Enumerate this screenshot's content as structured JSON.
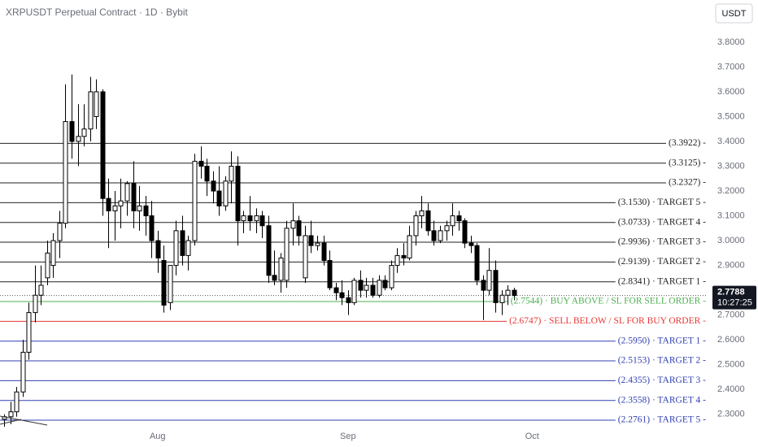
{
  "chart_data": {
    "type": "candlestick",
    "title": "XRPUSDT Perpetual Contract · 1D · Bybit",
    "currency": "USDT",
    "up_color": "#ffffff",
    "down_color": "#000000",
    "edge_color": "#000000",
    "open": [
      2.28,
      2.29,
      2.31,
      2.39,
      2.55,
      2.71,
      2.78,
      2.85,
      2.9,
      3.0,
      3.07,
      3.48,
      3.4,
      3.42,
      3.45,
      3.5,
      3.6,
      3.17,
      3.12,
      3.14,
      3.16,
      3.23,
      3.12,
      3.14,
      3.1,
      3.0,
      2.92,
      2.75,
      2.9,
      3.04,
      2.94,
      3.0,
      3.32,
      3.3,
      3.24,
      3.2,
      3.14,
      3.24,
      3.3,
      3.08,
      3.1,
      3.08,
      3.1,
      3.06,
      2.86,
      2.84,
      2.84,
      3.05,
      3.08,
      2.85,
      3.02,
      2.98,
      2.99,
      2.92,
      2.81,
      2.79,
      2.77,
      2.75,
      2.84,
      2.8,
      2.82,
      2.78,
      2.84,
      2.81,
      2.9,
      2.94,
      2.93,
      3.02,
      3.1,
      3.12,
      3.04,
      3.0,
      3.04,
      3.06,
      3.1,
      3.08,
      2.99,
      2.98,
      2.84,
      2.8,
      2.88,
      2.75,
      2.78,
      2.8
    ],
    "high": [
      2.3,
      2.35,
      2.41,
      2.6,
      2.75,
      2.9,
      2.9,
      3.0,
      3.03,
      3.12,
      3.63,
      3.67,
      3.55,
      3.55,
      3.66,
      3.65,
      3.61,
      3.25,
      3.2,
      3.25,
      3.24,
      3.32,
      3.22,
      3.18,
      3.16,
      3.04,
      2.98,
      2.9,
      3.08,
      3.1,
      3.02,
      3.35,
      3.38,
      3.33,
      3.28,
      3.3,
      3.26,
      3.36,
      3.34,
      3.12,
      3.18,
      3.13,
      3.12,
      3.1,
      2.96,
      2.95,
      3.08,
      3.15,
      3.1,
      3.06,
      3.08,
      3.02,
      3.02,
      2.96,
      2.83,
      2.84,
      2.8,
      2.85,
      2.88,
      2.85,
      2.85,
      2.86,
      2.86,
      2.92,
      2.97,
      2.99,
      3.06,
      3.12,
      3.18,
      3.15,
      3.08,
      3.06,
      3.08,
      3.15,
      3.12,
      3.09,
      3.02,
      2.99,
      2.86,
      2.97,
      2.92,
      2.8,
      2.82,
      2.81
    ],
    "low": [
      2.25,
      2.26,
      2.29,
      2.37,
      2.52,
      2.67,
      2.74,
      2.82,
      2.85,
      2.93,
      3.05,
      3.33,
      3.3,
      3.38,
      3.4,
      3.45,
      3.1,
      2.97,
      3.0,
      3.05,
      3.1,
      3.05,
      3.04,
      3.02,
      2.93,
      2.87,
      2.71,
      2.72,
      2.86,
      2.9,
      2.88,
      2.98,
      3.25,
      3.18,
      3.15,
      3.1,
      3.12,
      3.15,
      2.98,
      3.03,
      3.04,
      3.03,
      3.01,
      2.83,
      2.82,
      2.79,
      2.81,
      2.98,
      2.98,
      2.83,
      2.95,
      2.96,
      2.9,
      2.8,
      2.76,
      2.74,
      2.7,
      2.74,
      2.77,
      2.77,
      2.77,
      2.77,
      2.8,
      2.8,
      2.87,
      2.9,
      2.92,
      2.98,
      3.05,
      3.02,
      2.98,
      2.99,
      3.0,
      3.02,
      3.04,
      2.97,
      2.95,
      2.82,
      2.68,
      2.78,
      2.71,
      2.7,
      2.74,
      2.76
    ],
    "close": [
      2.29,
      2.31,
      2.39,
      2.55,
      2.71,
      2.78,
      2.82,
      2.95,
      3.0,
      3.07,
      3.48,
      3.4,
      3.42,
      3.45,
      3.6,
      3.6,
      3.17,
      3.12,
      3.14,
      3.16,
      3.23,
      3.12,
      3.14,
      3.1,
      3.0,
      2.93,
      2.74,
      2.9,
      3.04,
      2.94,
      3.0,
      3.32,
      3.3,
      3.24,
      3.2,
      3.14,
      3.24,
      3.3,
      3.08,
      3.1,
      3.08,
      3.1,
      3.06,
      2.86,
      2.84,
      2.93,
      3.05,
      3.08,
      3.02,
      3.02,
      2.98,
      2.99,
      2.92,
      2.81,
      2.79,
      2.77,
      2.75,
      2.84,
      2.8,
      2.82,
      2.78,
      2.84,
      2.81,
      2.9,
      2.94,
      2.93,
      3.02,
      3.1,
      3.12,
      3.04,
      3.0,
      3.04,
      3.06,
      3.1,
      3.08,
      2.99,
      2.98,
      2.84,
      2.8,
      2.88,
      2.75,
      2.78,
      2.8,
      2.7788
    ],
    "xlim": [
      -0.66,
      114.57
    ],
    "xticks": [
      {
        "value": 25,
        "label": "Aug"
      },
      {
        "value": 56,
        "label": "Sep"
      },
      {
        "value": 86,
        "label": "Oct"
      }
    ],
    "ylim": [
      2.25,
      3.97
    ],
    "yticks": [
      {
        "value": 3.8,
        "label": "3.8000"
      },
      {
        "value": 3.7,
        "label": "3.7000"
      },
      {
        "value": 3.6,
        "label": "3.6000"
      },
      {
        "value": 3.5,
        "label": "3.5000"
      },
      {
        "value": 3.4,
        "label": "3.4000"
      },
      {
        "value": 3.3,
        "label": "3.3000"
      },
      {
        "value": 3.2,
        "label": "3.2000"
      },
      {
        "value": 3.1,
        "label": "3.1000"
      },
      {
        "value": 3.0,
        "label": "3.0000"
      },
      {
        "value": 2.9,
        "label": "2.9000"
      },
      {
        "value": 2.8,
        "label": "2.8000"
      },
      {
        "value": 2.7,
        "label": "2.7000"
      },
      {
        "value": 2.6,
        "label": "2.6000"
      },
      {
        "value": 2.5,
        "label": "2.5000"
      },
      {
        "value": 2.4,
        "label": "2.4000"
      },
      {
        "value": 2.3,
        "label": "2.3000"
      }
    ],
    "levels": [
      {
        "value": 3.3922,
        "label": "(3.3922) -",
        "color": "#222222"
      },
      {
        "value": 3.3125,
        "label": "(3.3125) -",
        "color": "#222222"
      },
      {
        "value": 3.2327,
        "label": "(3.2327) -",
        "color": "#222222"
      },
      {
        "value": 3.153,
        "label": "(3.1530) · TARGET 5 -",
        "color": "#222222"
      },
      {
        "value": 3.0733,
        "label": "(3.0733) · TARGET 4 -",
        "color": "#222222"
      },
      {
        "value": 2.9936,
        "label": "(2.9936) · TARGET 3 -",
        "color": "#222222"
      },
      {
        "value": 2.9139,
        "label": "(2.9139) · TARGET 2 -",
        "color": "#222222"
      },
      {
        "value": 2.8341,
        "label": "(2.8341) · TARGET 1 -",
        "color": "#222222"
      },
      {
        "value": 2.7544,
        "label": "(2.7544) · BUY ABOVE / SL FOR SELL ORDER -",
        "color": "#4caf50"
      },
      {
        "value": 2.6747,
        "label": "(2.6747) · SELL BELOW / SL FOR BUY ORDER -",
        "color": "#e53935"
      },
      {
        "value": 2.595,
        "label": "(2.5950) · TARGET 1 -",
        "color": "#3140b0"
      },
      {
        "value": 2.5153,
        "label": "(2.5153) · TARGET 2 -",
        "color": "#3140b0"
      },
      {
        "value": 2.4355,
        "label": "(2.4355) · TARGET 3 -",
        "color": "#3140b0"
      },
      {
        "value": 2.3558,
        "label": "(2.3558) · TARGET 4 -",
        "color": "#3140b0"
      },
      {
        "value": 2.2761,
        "label": "(2.2761) · TARGET 5 -",
        "color": "#3140b0"
      }
    ],
    "last_price": {
      "value": 2.7788,
      "label": "2.7788"
    },
    "countdown": "10:27:25"
  }
}
